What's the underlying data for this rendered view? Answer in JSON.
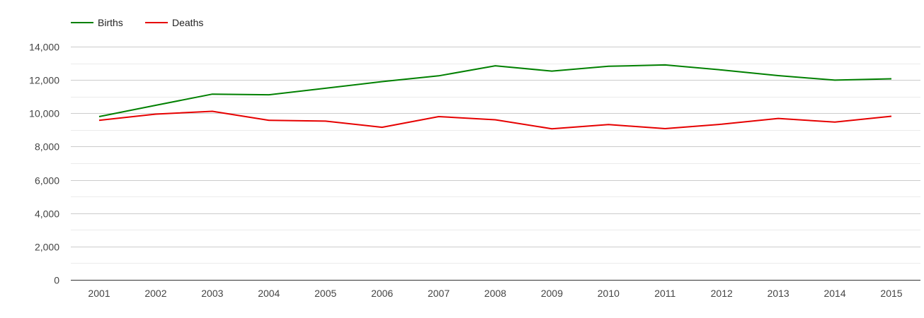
{
  "chart_data": {
    "type": "line",
    "title": "",
    "xlabel": "",
    "ylabel": "",
    "x": [
      "2001",
      "2002",
      "2003",
      "2004",
      "2005",
      "2006",
      "2007",
      "2008",
      "2009",
      "2010",
      "2011",
      "2012",
      "2013",
      "2014",
      "2015"
    ],
    "ylim": [
      0,
      14000
    ],
    "yticks": [
      "0",
      "2,000",
      "4,000",
      "6,000",
      "8,000",
      "10,000",
      "12,000",
      "14,000"
    ],
    "ytick_values": [
      0,
      2000,
      4000,
      6000,
      8000,
      10000,
      12000,
      14000
    ],
    "minor_gridlines": true,
    "grid": true,
    "legend_position": "top-left",
    "series": [
      {
        "name": "Births",
        "color": "#008000",
        "values": [
          9800,
          10480,
          11150,
          11110,
          11500,
          11900,
          12250,
          12850,
          12530,
          12820,
          12900,
          12600,
          12260,
          11990,
          12070
        ]
      },
      {
        "name": "Deaths",
        "color": "#e60000",
        "values": [
          9580,
          9950,
          10120,
          9580,
          9530,
          9160,
          9800,
          9610,
          9070,
          9320,
          9080,
          9340,
          9690,
          9470,
          9820
        ]
      }
    ]
  }
}
